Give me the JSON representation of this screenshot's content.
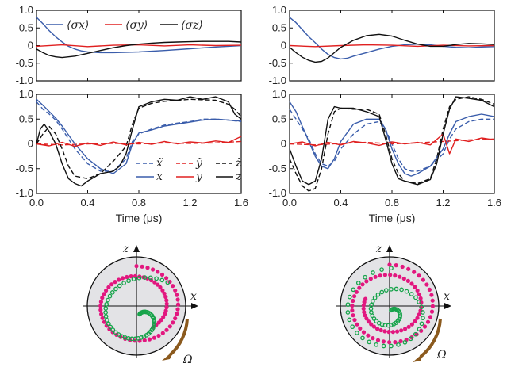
{
  "colors": {
    "x": "#3a5dab",
    "y": "#e02020",
    "z": "#111111",
    "bloch_outer": "#e2177f",
    "bloch_inner": "#16a34a",
    "sphere_fill": "#e3e3e6",
    "arrow": "#8b5a1e"
  },
  "bloch_labels": {
    "z": "z",
    "x": "x",
    "omega": "Ω"
  },
  "chart_data": [
    {
      "type": "line",
      "panel": "top-left",
      "ylim": [
        -1,
        1
      ],
      "xlim": [
        0,
        1.6
      ],
      "yticks": [
        "1.0",
        "0.5",
        "0",
        "-0.5",
        "-1.0"
      ],
      "legend": [
        "⟨σx⟩",
        "⟨σy⟩",
        "⟨σz⟩"
      ],
      "legend_placement": "top",
      "series": [
        {
          "name": "⟨σx⟩",
          "color": "x",
          "dash": false,
          "x": [
            0,
            0.05,
            0.1,
            0.15,
            0.2,
            0.25,
            0.3,
            0.35,
            0.4,
            0.5,
            0.6,
            0.8,
            1.0,
            1.2,
            1.4,
            1.6
          ],
          "y": [
            0.8,
            0.62,
            0.42,
            0.25,
            0.1,
            -0.02,
            -0.1,
            -0.15,
            -0.18,
            -0.2,
            -0.2,
            -0.18,
            -0.14,
            -0.09,
            -0.04,
            0.0
          ]
        },
        {
          "name": "⟨σy⟩",
          "color": "y",
          "dash": false,
          "x": [
            0,
            0.2,
            0.4,
            0.6,
            0.8,
            1.0,
            1.2,
            1.4,
            1.6
          ],
          "y": [
            -0.02,
            0.02,
            -0.03,
            0.01,
            0.02,
            -0.01,
            0.02,
            0.0,
            0.01
          ]
        },
        {
          "name": "⟨σz⟩",
          "color": "z",
          "dash": false,
          "x": [
            0,
            0.05,
            0.1,
            0.15,
            0.2,
            0.3,
            0.4,
            0.5,
            0.6,
            0.7,
            0.8,
            0.9,
            1.0,
            1.1,
            1.2,
            1.3,
            1.4,
            1.5,
            1.6
          ],
          "y": [
            -0.1,
            -0.2,
            -0.28,
            -0.32,
            -0.34,
            -0.3,
            -0.22,
            -0.14,
            -0.06,
            0.0,
            0.04,
            0.07,
            0.09,
            0.1,
            0.11,
            0.12,
            0.12,
            0.12,
            0.1
          ]
        }
      ]
    },
    {
      "type": "line",
      "panel": "top-right",
      "ylim": [
        -1,
        1
      ],
      "xlim": [
        0,
        1.6
      ],
      "yticks": [
        "1.0",
        "0.5",
        "0",
        "-0.5",
        "-1.0"
      ],
      "series": [
        {
          "color": "x",
          "dash": false,
          "x": [
            0,
            0.05,
            0.1,
            0.15,
            0.2,
            0.25,
            0.3,
            0.35,
            0.4,
            0.45,
            0.5,
            0.6,
            0.7,
            0.8,
            0.9,
            1.0,
            1.1,
            1.2,
            1.3,
            1.4,
            1.5,
            1.6
          ],
          "y": [
            0.8,
            0.65,
            0.45,
            0.25,
            0.08,
            -0.1,
            -0.25,
            -0.34,
            -0.38,
            -0.36,
            -0.3,
            -0.2,
            -0.1,
            -0.02,
            0.02,
            0.04,
            0.02,
            -0.02,
            -0.05,
            -0.06,
            -0.04,
            -0.03
          ]
        },
        {
          "color": "y",
          "dash": false,
          "x": [
            0,
            0.2,
            0.4,
            0.6,
            0.8,
            1.0,
            1.2,
            1.4,
            1.6
          ],
          "y": [
            0.0,
            -0.03,
            0.0,
            0.02,
            0.01,
            -0.02,
            0.01,
            -0.01,
            0.0
          ]
        },
        {
          "color": "z",
          "dash": false,
          "x": [
            0,
            0.05,
            0.1,
            0.15,
            0.2,
            0.25,
            0.3,
            0.35,
            0.4,
            0.5,
            0.6,
            0.7,
            0.8,
            0.9,
            1.0,
            1.1,
            1.2,
            1.3,
            1.4,
            1.5,
            1.6
          ],
          "y": [
            -0.05,
            -0.2,
            -0.33,
            -0.42,
            -0.47,
            -0.45,
            -0.35,
            -0.2,
            -0.05,
            0.15,
            0.28,
            0.32,
            0.27,
            0.15,
            0.04,
            -0.02,
            -0.02,
            0.03,
            0.06,
            0.05,
            0.03
          ]
        }
      ]
    },
    {
      "type": "line",
      "panel": "bottom-left",
      "ylim": [
        -1,
        1
      ],
      "xlim": [
        0,
        1.6
      ],
      "yticks": [
        "1.0",
        "0.5",
        "0",
        "-0.5",
        "-1.0"
      ],
      "xticks": [
        "0.0",
        "0.4",
        "0.8",
        "1.2",
        "1.6"
      ],
      "xlabel": "Time (μs)",
      "legend": [
        "x̃",
        "ỹ",
        "z̃",
        "x",
        "y",
        "z"
      ],
      "legend_placement": "lower-right",
      "series": [
        {
          "name": "x̃",
          "color": "x",
          "dash": true,
          "x": [
            0,
            0.05,
            0.1,
            0.15,
            0.2,
            0.3,
            0.4,
            0.5,
            0.6,
            0.7,
            0.75,
            0.8,
            0.9,
            1.0,
            1.1,
            1.2,
            1.3,
            1.4,
            1.5,
            1.6
          ],
          "y": [
            0.85,
            0.7,
            0.6,
            0.48,
            0.3,
            -0.1,
            -0.4,
            -0.55,
            -0.55,
            -0.3,
            0.05,
            0.2,
            0.3,
            0.38,
            0.42,
            0.45,
            0.5,
            0.5,
            0.48,
            0.45
          ]
        },
        {
          "name": "ỹ",
          "color": "y",
          "dash": true,
          "x": [
            0,
            0.2,
            0.4,
            0.6,
            0.8,
            1.0,
            1.2,
            1.4,
            1.6
          ],
          "y": [
            0.0,
            -0.02,
            0.0,
            0.01,
            0.0,
            0.02,
            0.01,
            0.02,
            0.05
          ]
        },
        {
          "name": "z̃",
          "color": "z",
          "dash": true,
          "x": [
            0,
            0.05,
            0.1,
            0.15,
            0.2,
            0.25,
            0.3,
            0.4,
            0.5,
            0.6,
            0.7,
            0.75,
            0.8,
            0.9,
            1.0,
            1.2,
            1.4,
            1.5,
            1.55,
            1.6
          ],
          "y": [
            0.0,
            0.2,
            0.35,
            0.2,
            -0.1,
            -0.45,
            -0.65,
            -0.7,
            -0.6,
            -0.35,
            -0.05,
            0.4,
            0.72,
            0.82,
            0.86,
            0.9,
            0.88,
            0.8,
            0.7,
            0.55
          ]
        },
        {
          "name": "x",
          "color": "x",
          "dash": false,
          "x": [
            0,
            0.05,
            0.1,
            0.15,
            0.2,
            0.3,
            0.4,
            0.5,
            0.6,
            0.7,
            0.75,
            0.8,
            0.9,
            1.0,
            1.1,
            1.2,
            1.3,
            1.4,
            1.5,
            1.6
          ],
          "y": [
            0.9,
            0.78,
            0.65,
            0.52,
            0.36,
            0.0,
            -0.3,
            -0.5,
            -0.6,
            -0.4,
            0.0,
            0.22,
            0.28,
            0.36,
            0.4,
            0.44,
            0.48,
            0.5,
            0.48,
            0.46
          ]
        },
        {
          "name": "y",
          "color": "y",
          "dash": false,
          "x": [
            0,
            0.1,
            0.2,
            0.3,
            0.4,
            0.5,
            0.6,
            0.7,
            0.8,
            0.9,
            1.0,
            1.1,
            1.2,
            1.3,
            1.4,
            1.5,
            1.6
          ],
          "y": [
            0.0,
            -0.04,
            0.03,
            -0.05,
            0.02,
            -0.03,
            0.04,
            -0.02,
            0.03,
            -0.01,
            0.05,
            0.0,
            0.04,
            0.02,
            0.06,
            0.03,
            0.15
          ]
        },
        {
          "name": "z",
          "color": "z",
          "dash": false,
          "x": [
            0,
            0.03,
            0.06,
            0.1,
            0.15,
            0.2,
            0.25,
            0.3,
            0.35,
            0.4,
            0.5,
            0.6,
            0.65,
            0.7,
            0.75,
            0.8,
            0.9,
            1.0,
            1.1,
            1.2,
            1.3,
            1.4,
            1.5,
            1.55,
            1.6
          ],
          "y": [
            0.0,
            0.3,
            0.4,
            0.25,
            0.0,
            -0.4,
            -0.7,
            -0.8,
            -0.85,
            -0.75,
            -0.6,
            -0.55,
            -0.45,
            -0.2,
            0.3,
            0.75,
            0.85,
            0.9,
            0.88,
            0.95,
            0.9,
            0.95,
            0.85,
            0.6,
            0.5
          ]
        }
      ]
    },
    {
      "type": "line",
      "panel": "bottom-right",
      "ylim": [
        -1,
        1
      ],
      "xlim": [
        0,
        1.6
      ],
      "yticks": [
        "1.0",
        "0.5",
        "0",
        "-0.5",
        "-1.0"
      ],
      "xticks": [
        "0.0",
        "0.4",
        "0.8",
        "1.2",
        "1.6"
      ],
      "xlabel": "Time (μs)",
      "series": [
        {
          "color": "x",
          "dash": true,
          "x": [
            0,
            0.05,
            0.1,
            0.15,
            0.2,
            0.25,
            0.3,
            0.35,
            0.4,
            0.5,
            0.6,
            0.7,
            0.75,
            0.8,
            0.85,
            0.9,
            0.95,
            1.0,
            1.1,
            1.2,
            1.25,
            1.3,
            1.4,
            1.5,
            1.6
          ],
          "y": [
            0.7,
            0.5,
            0.3,
            0.1,
            -0.2,
            -0.4,
            -0.45,
            -0.35,
            -0.1,
            0.2,
            0.4,
            0.45,
            0.3,
            0.0,
            -0.3,
            -0.5,
            -0.55,
            -0.55,
            -0.45,
            -0.2,
            0.1,
            0.3,
            0.45,
            0.5,
            0.5
          ]
        },
        {
          "color": "y",
          "dash": true,
          "x": [
            0,
            0.2,
            0.4,
            0.6,
            0.8,
            1.0,
            1.2,
            1.4,
            1.6
          ],
          "y": [
            0.0,
            -0.02,
            0.01,
            0.03,
            0.0,
            0.02,
            0.05,
            0.08,
            0.1
          ]
        },
        {
          "color": "z",
          "dash": true,
          "x": [
            0,
            0.05,
            0.1,
            0.15,
            0.2,
            0.25,
            0.3,
            0.35,
            0.4,
            0.5,
            0.6,
            0.7,
            0.75,
            0.8,
            0.85,
            0.9,
            1.0,
            1.1,
            1.15,
            1.2,
            1.25,
            1.3,
            1.4,
            1.5,
            1.6
          ],
          "y": [
            -0.3,
            -0.6,
            -0.85,
            -0.95,
            -0.9,
            -0.5,
            0.2,
            0.65,
            0.72,
            0.7,
            0.7,
            0.6,
            0.2,
            -0.3,
            -0.6,
            -0.75,
            -0.8,
            -0.7,
            -0.3,
            0.3,
            0.75,
            0.9,
            0.95,
            0.9,
            0.8
          ]
        },
        {
          "color": "x",
          "dash": false,
          "x": [
            0,
            0.05,
            0.1,
            0.15,
            0.2,
            0.25,
            0.3,
            0.35,
            0.4,
            0.5,
            0.6,
            0.7,
            0.75,
            0.8,
            0.85,
            0.9,
            0.95,
            1.0,
            1.1,
            1.2,
            1.25,
            1.3,
            1.4,
            1.5,
            1.6
          ],
          "y": [
            0.85,
            0.65,
            0.35,
            0.05,
            -0.25,
            -0.45,
            -0.5,
            -0.3,
            0.05,
            0.4,
            0.5,
            0.5,
            0.3,
            -0.1,
            -0.4,
            -0.6,
            -0.65,
            -0.6,
            -0.45,
            -0.1,
            0.2,
            0.45,
            0.55,
            0.6,
            0.55
          ]
        },
        {
          "color": "y",
          "dash": false,
          "x": [
            0,
            0.1,
            0.2,
            0.3,
            0.4,
            0.5,
            0.6,
            0.7,
            0.8,
            0.9,
            1.0,
            1.1,
            1.2,
            1.25,
            1.3,
            1.4,
            1.5,
            1.6
          ],
          "y": [
            0.0,
            0.04,
            -0.04,
            0.03,
            -0.02,
            0.05,
            0.02,
            -0.03,
            0.04,
            0.0,
            0.03,
            -0.02,
            0.2,
            -0.2,
            0.1,
            0.05,
            0.12,
            0.08
          ]
        },
        {
          "color": "z",
          "dash": false,
          "x": [
            0,
            0.05,
            0.1,
            0.15,
            0.2,
            0.25,
            0.3,
            0.35,
            0.4,
            0.5,
            0.6,
            0.7,
            0.75,
            0.8,
            0.85,
            0.9,
            1.0,
            1.1,
            1.15,
            1.2,
            1.25,
            1.3,
            1.4,
            1.5,
            1.6
          ],
          "y": [
            -0.1,
            -0.45,
            -0.75,
            -0.82,
            -0.75,
            -0.3,
            0.5,
            0.75,
            0.72,
            0.72,
            0.65,
            0.55,
            0.1,
            -0.4,
            -0.7,
            -0.75,
            -0.82,
            -0.72,
            -0.4,
            0.2,
            0.7,
            0.95,
            0.92,
            0.88,
            0.75
          ]
        }
      ]
    }
  ]
}
